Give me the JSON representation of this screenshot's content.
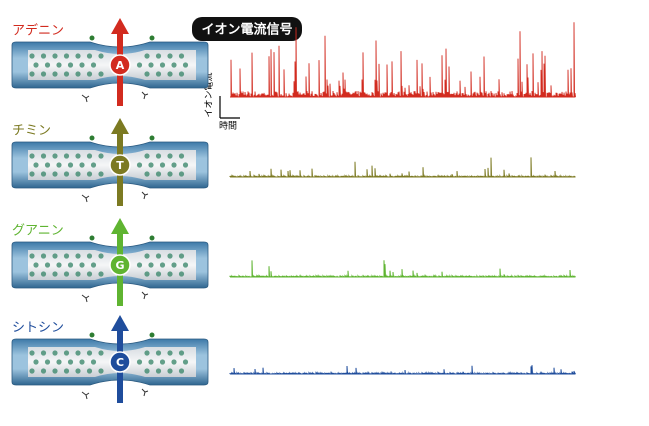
{
  "signal_label": "イオン電流信号",
  "axis": {
    "y_label": "イオン電流",
    "x_label": "時間"
  },
  "panels": [
    {
      "label": "アデニン",
      "base": "A"
    },
    {
      "label": "チミン",
      "base": "T"
    },
    {
      "label": "グアニン",
      "base": "G"
    },
    {
      "label": "シトシン",
      "base": "C"
    }
  ]
}
